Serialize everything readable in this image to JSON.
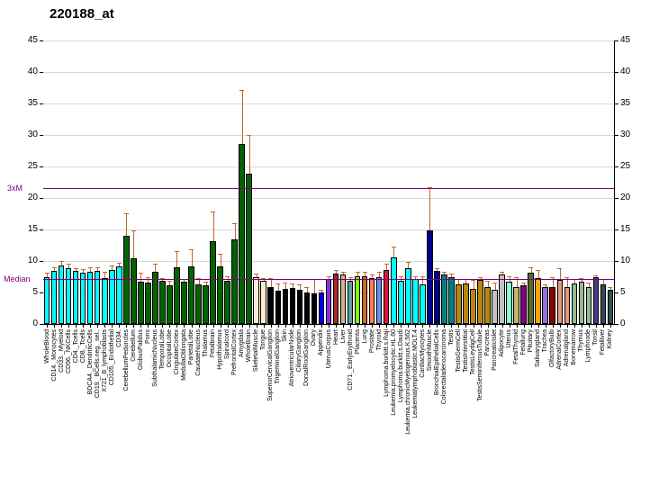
{
  "title": "220188_at",
  "axis": {
    "y_ticks": [
      0,
      5,
      10,
      15,
      20,
      25,
      30,
      35,
      40,
      45
    ],
    "y_max": 45,
    "grid_color": "#d9d9d9",
    "error_bar_color": "#c1662a"
  },
  "ref_lines": {
    "threexm": {
      "label": "3xM",
      "value": 21.6,
      "color": "#800080"
    },
    "median": {
      "label": "Median",
      "value": 7.2,
      "color": "#800080"
    }
  },
  "chart_data": {
    "type": "bar",
    "title": "220188_at",
    "xlabel": "",
    "ylabel": "",
    "ylim": [
      0,
      45
    ],
    "grid": true,
    "median_line": 7.2,
    "threshold_3xm_line": 21.6,
    "categories": [
      "WholeBlood",
      "CD14._Monocytes",
      "CD33._Myeloid",
      "CD56._NKCells",
      "CD4._Tcells",
      "CD8._Tcells",
      "BDCA4._DendriticCells",
      "CD19._BCells.neg._sel..",
      "X721_B_lymphoblasts",
      "CD105._Endothelial",
      "CD34.",
      "CerebellumPeduncles",
      "Cerebellum",
      "GlobusPalidus",
      "Pons",
      "SubthalamicNucleus",
      "TemporalLobe",
      "OccipitalLobe",
      "CingulateCortex",
      "MedullaOblongata",
      "ParietalLobe",
      "CaudateNucleus",
      "Thalamus",
      "Fetalbrain",
      "Hypothalamus",
      "Spinalcord",
      "PrefrontalCortex",
      "Amygdala",
      "WholeBrain",
      "SkeletalMuscle",
      "Tongue",
      "SuperiorCervicalGanglion",
      "TrigeminalGanglion",
      "Skin",
      "AtrioventricularNode",
      "CiliaryGanglion",
      "DorsalRootGanglion",
      "Ovary",
      "Appendix",
      "UterusCorpus",
      "Heart",
      "Liver",
      "CD71._EarlyErythroid",
      "Placenta",
      "Lung",
      "Prostate",
      "Thyroid",
      "Lymphoma.burkitt.s.Raji",
      "Leukemia.promyelocytic.HL.60",
      "Lymphoma.burkitt.s.Daudi",
      "Leukemia.chronicMyelogenous.K.562",
      "Leukemialymphoblastic.MOLT.4",
      "CardiacMyocytes",
      "SmoothMuscle",
      "BronchialEpithelialCells",
      "Colorectaladenocarcinoma",
      "Testis",
      "TestisGermCell",
      "TestisInterstitial",
      "TestisLeydigCell",
      "TestisSeminiferousTubule",
      "Pancreas",
      "PancreaticIslet",
      "Adipocyte",
      "Uterus",
      "FetalThyroid",
      "Fetallung",
      "Pituitary",
      "Salivarygland",
      "Trachea",
      "OlfactoryBulb",
      "AdrenalCortex",
      "Adrenalgland",
      "Bonemarrow",
      "Thymus",
      "Lymphnode",
      "Tonsil",
      "Fetalliver",
      "Kidney"
    ],
    "values": [
      7.5,
      8.4,
      9.3,
      8.9,
      8.4,
      8.1,
      8.3,
      8.4,
      7.3,
      8.6,
      9.1,
      14.0,
      10.4,
      6.7,
      6.6,
      8.3,
      6.8,
      6.2,
      9.0,
      6.7,
      9.2,
      6.3,
      6.2,
      13.1,
      9.2,
      6.8,
      13.5,
      28.6,
      23.9,
      7.5,
      6.9,
      5.9,
      5.3,
      5.6,
      5.7,
      5.4,
      5.0,
      4.9,
      5.0,
      7.2,
      8.0,
      7.8,
      6.9,
      7.6,
      7.6,
      7.3,
      7.5,
      8.6,
      10.6,
      6.9,
      8.9,
      7.1,
      6.3,
      14.9,
      8.4,
      7.8,
      7.5,
      6.3,
      6.5,
      5.6,
      7.0,
      5.9,
      5.4,
      7.8,
      6.7,
      5.9,
      6.2,
      8.2,
      7.3,
      5.8,
      5.8,
      7.0,
      5.8,
      6.5,
      6.7,
      5.8,
      7.4,
      6.3,
      5.4
    ],
    "errors_upper": [
      8.0,
      8.9,
      9.8,
      9.4,
      8.7,
      8.6,
      8.8,
      8.9,
      8.2,
      9.1,
      9.6,
      17.4,
      14.7,
      8.0,
      7.3,
      9.5,
      7.2,
      6.7,
      11.4,
      7.0,
      11.7,
      7.1,
      6.6,
      17.7,
      11.0,
      7.4,
      15.8,
      37.0,
      29.9,
      7.8,
      7.1,
      7.2,
      6.3,
      6.5,
      6.3,
      6.1,
      5.7,
      7.0,
      5.3,
      7.5,
      8.4,
      8.2,
      7.3,
      8.1,
      8.2,
      7.7,
      8.1,
      9.5,
      12.1,
      7.4,
      9.7,
      7.4,
      7.5,
      21.6,
      8.7,
      8.1,
      7.8,
      7.0,
      7.0,
      6.9,
      7.3,
      6.7,
      6.5,
      8.1,
      7.4,
      7.3,
      6.5,
      8.8,
      8.4,
      6.1,
      7.3,
      8.7,
      7.3,
      7.0,
      7.2,
      6.4,
      7.6,
      7.0,
      5.7
    ],
    "bar_colors": [
      "#00FFFF",
      "#00FFFF",
      "#00FFFF",
      "#00FFFF",
      "#00FFFF",
      "#00FFFF",
      "#00FFFF",
      "#00FFFF",
      "#00FFFF",
      "#00FFFF",
      "#00FFFF",
      "#006400",
      "#006400",
      "#006400",
      "#006400",
      "#006400",
      "#006400",
      "#006400",
      "#006400",
      "#006400",
      "#006400",
      "#006400",
      "#006400",
      "#006400",
      "#006400",
      "#006400",
      "#006400",
      "#006400",
      "#006400",
      "#FFEBCD",
      "#FFEBCD",
      "#000000",
      "#000000",
      "#000000",
      "#000000",
      "#000000",
      "#000000",
      "#000000",
      "#0000FF",
      "#8A2BE2",
      "#A52A2A",
      "#D2B48C",
      "#5F9EA0",
      "#7FFF00",
      "#D2691E",
      "#FF7F50",
      "#6495ED",
      "#DC143C",
      "#00FFFF",
      "#00FFFF",
      "#00FFFF",
      "#00FFFF",
      "#00FFFF",
      "#00008B",
      "#00008B",
      "#008080",
      "#008080",
      "#B8860B",
      "#B8860B",
      "#B8860B",
      "#B8860B",
      "#B8860B",
      "#C0C0C0",
      "#C0C0C0",
      "#7FFFD4",
      "#BDB76B",
      "#800080",
      "#556B2F",
      "#FFA500",
      "#9370DB",
      "#8B0000",
      "#E9967A",
      "#E9967A",
      "#8FBC8F",
      "#8FBC8F",
      "#8FBC8F",
      "#483D8B",
      "#2F4F4F",
      "#2F4F4F"
    ],
    "legend": null
  }
}
